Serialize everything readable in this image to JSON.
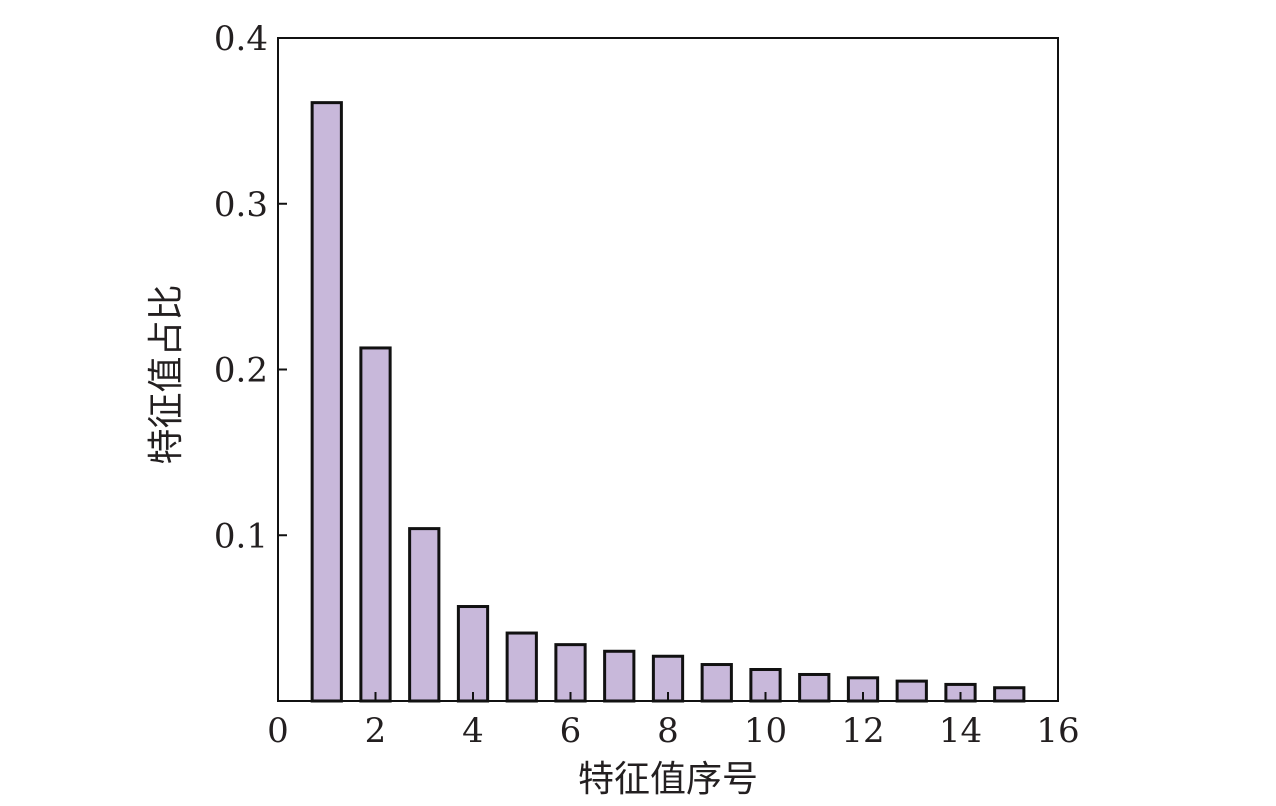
{
  "chart_data": {
    "type": "bar",
    "title": "",
    "xlabel": "特征值序号",
    "ylabel": "特征值占比",
    "x": [
      1,
      2,
      3,
      4,
      5,
      6,
      7,
      8,
      9,
      10,
      11,
      12,
      13,
      14,
      15
    ],
    "values": [
      0.361,
      0.213,
      0.104,
      0.057,
      0.041,
      0.034,
      0.03,
      0.027,
      0.022,
      0.019,
      0.016,
      0.014,
      0.012,
      0.01,
      0.008
    ],
    "xlim": [
      0,
      16
    ],
    "ylim": [
      0,
      0.4
    ],
    "xticks": [
      "0",
      "2",
      "4",
      "6",
      "8",
      "10",
      "12",
      "14",
      "16"
    ],
    "yticks": [
      "0.1",
      "0.2",
      "0.3",
      "0.4"
    ],
    "grid": false,
    "legend": "none",
    "colors": {
      "bar_fill": "#c8b8da",
      "bar_stroke": "#111111",
      "axis": "#111111",
      "text": "#231f20"
    }
  }
}
